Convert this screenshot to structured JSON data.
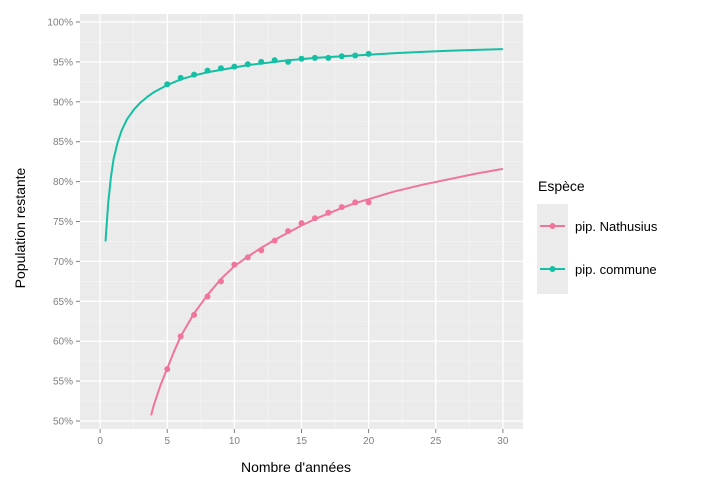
{
  "chart_data": {
    "type": "line",
    "xlabel": "Nombre d'années",
    "ylabel": "Population restante",
    "xlim": [
      -1.5,
      31.5
    ],
    "ylim": [
      49,
      101
    ],
    "x_ticks": [
      0,
      5,
      10,
      15,
      20,
      25,
      30
    ],
    "y_ticks": [
      50,
      55,
      60,
      65,
      70,
      75,
      80,
      85,
      90,
      95,
      100
    ],
    "y_tick_labels": [
      "50%",
      "55%",
      "60%",
      "65%",
      "70%",
      "75%",
      "80%",
      "85%",
      "90%",
      "95%",
      "100%"
    ],
    "x_tick_labels": [
      "0",
      "5",
      "10",
      "15",
      "20",
      "25",
      "30"
    ],
    "grid": true,
    "legend": {
      "title": "Espèce",
      "position": "right",
      "entries": [
        "pip. Nathusius",
        "pip. commune"
      ]
    },
    "series": [
      {
        "name": "pip. Nathusius",
        "color": "#f0759a",
        "curve": {
          "x": [
            3.8,
            4.0,
            4.5,
            5,
            5.5,
            6,
            7,
            8,
            9,
            10,
            11,
            12,
            13,
            14,
            15,
            16,
            17,
            18,
            19,
            20,
            22,
            24,
            26,
            28,
            30
          ],
          "y": [
            50.7,
            52.0,
            54.5,
            56.6,
            58.7,
            60.6,
            63.5,
            65.8,
            67.8,
            69.4,
            70.6,
            71.7,
            72.7,
            73.6,
            74.5,
            75.3,
            76.0,
            76.7,
            77.3,
            77.8,
            78.8,
            79.6,
            80.3,
            81.0,
            81.6
          ]
        },
        "points": {
          "x": [
            5,
            6,
            7,
            8,
            9,
            10,
            11,
            12,
            13,
            14,
            15,
            16,
            17,
            18,
            19,
            20
          ],
          "y": [
            56.5,
            60.6,
            63.3,
            65.6,
            67.5,
            69.6,
            70.5,
            71.4,
            72.6,
            73.8,
            74.8,
            75.4,
            76.1,
            76.8,
            77.4,
            77.4
          ]
        }
      },
      {
        "name": "pip. commune",
        "color": "#14bfa3",
        "curve": {
          "x": [
            0.4,
            0.6,
            0.8,
            1.0,
            1.3,
            1.6,
            2.0,
            2.5,
            3.0,
            3.5,
            4,
            5,
            6,
            7,
            8,
            9,
            10,
            11,
            12,
            13,
            14,
            15,
            16,
            17,
            18,
            19,
            20,
            22,
            24,
            26,
            28,
            30
          ],
          "y": [
            72.5,
            77.3,
            80.5,
            82.8,
            84.9,
            86.4,
            87.8,
            89.0,
            89.9,
            90.6,
            91.2,
            92.1,
            92.8,
            93.3,
            93.7,
            94.0,
            94.3,
            94.6,
            94.8,
            95.0,
            95.2,
            95.35,
            95.5,
            95.6,
            95.7,
            95.8,
            95.9,
            96.1,
            96.25,
            96.4,
            96.5,
            96.6
          ]
        },
        "points": {
          "x": [
            5,
            6,
            7,
            8,
            9,
            10,
            11,
            12,
            13,
            14,
            15,
            16,
            17,
            18,
            19,
            20
          ],
          "y": [
            92.2,
            93.0,
            93.4,
            93.9,
            94.2,
            94.4,
            94.7,
            95.0,
            95.2,
            95.0,
            95.4,
            95.5,
            95.5,
            95.7,
            95.8,
            96.0
          ]
        }
      }
    ]
  }
}
